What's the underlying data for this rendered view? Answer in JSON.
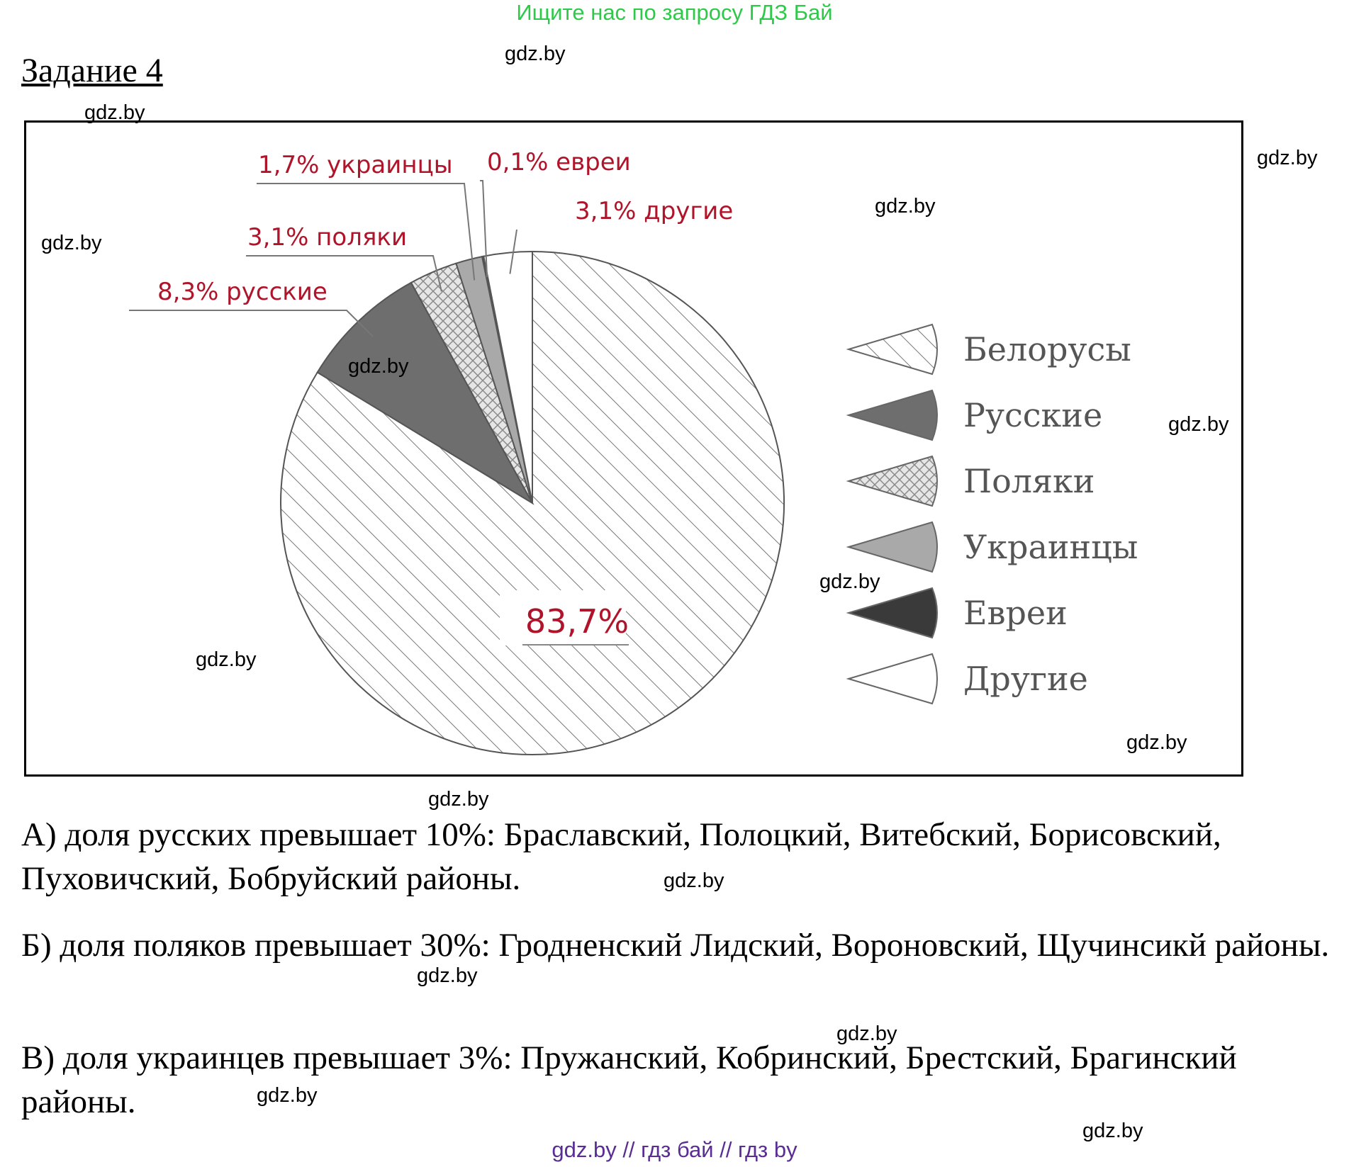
{
  "header": {
    "banner": "Ищите нас по запросу ГДЗ Бай",
    "task_title": "Задание 4"
  },
  "watermark": "gdz.by",
  "colors": {
    "banner": "#2fc94a",
    "label_red": "#b0142a",
    "footer": "#5a2d95"
  },
  "chart_data": {
    "type": "pie",
    "categories": [
      "Белорусы",
      "Русские",
      "Поляки",
      "Украинцы",
      "Евреи",
      "Другие"
    ],
    "values": [
      83.7,
      8.3,
      3.1,
      1.7,
      0.1,
      3.1
    ],
    "slice_labels": [
      "83,7%",
      "8,3% русские",
      "3,1% поляки",
      "1,7% украинцы",
      "0,1% евреи",
      "3,1% другие"
    ],
    "legend": [
      "Белорусы",
      "Русские",
      "Поляки",
      "Украинцы",
      "Евреи",
      "Другие"
    ],
    "legend_position": "right",
    "fills": [
      "hatch-diagonal",
      "#6e6e6e",
      "hatch-cross",
      "#a9a9a9",
      "#3a3a3a",
      "#ffffff"
    ]
  },
  "answers": [
    "А) доля русских превышает 10%: Браславский, Полоцкий, Витебский, Борисовский, Пуховичский, Бобруйский районы.",
    "Б) доля поляков превышает 30%: Гродненский Лидский, Вороновский, Щучинсикй районы.",
    "В) доля украинцев превышает 3%: Пружанский, Кобринский, Брестский, Брагинский районы."
  ],
  "footer": "gdz.by // гдз бай // гдз by"
}
